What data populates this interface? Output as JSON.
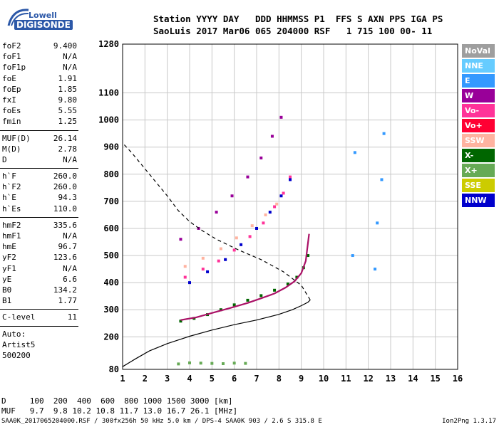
{
  "logo": {
    "top": "Lowell",
    "bottom": "DIGISONDE"
  },
  "header": {
    "line1": "Station YYYY DAY   DDD HHMMSS P1  FFS S AXN PPS IGA PS",
    "line2": "SaoLuis 2017 Mar06 065 204000 RSF   1 715 100 00- 11"
  },
  "params": {
    "g1": [
      {
        "name": "foF2",
        "value": "9.400"
      },
      {
        "name": "foF1",
        "value": "N/A"
      },
      {
        "name": "foF1p",
        "value": "N/A"
      },
      {
        "name": "foE",
        "value": "1.91"
      },
      {
        "name": "foEp",
        "value": "1.85"
      },
      {
        "name": "fxI",
        "value": "9.80"
      },
      {
        "name": "foEs",
        "value": "5.55"
      },
      {
        "name": "fmin",
        "value": "1.25"
      }
    ],
    "g2": [
      {
        "name": "MUF(D)",
        "value": "26.14"
      },
      {
        "name": "M(D)",
        "value": "2.78"
      },
      {
        "name": "D",
        "value": "N/A"
      }
    ],
    "g3": [
      {
        "name": "h`F",
        "value": "260.0"
      },
      {
        "name": "h`F2",
        "value": "260.0"
      },
      {
        "name": "h`E",
        "value": "94.3"
      },
      {
        "name": "h`Es",
        "value": "110.0"
      }
    ],
    "g4": [
      {
        "name": "hmF2",
        "value": "335.6"
      },
      {
        "name": "hmF1",
        "value": "N/A"
      },
      {
        "name": "hmE",
        "value": "96.7"
      },
      {
        "name": "yF2",
        "value": "123.6"
      },
      {
        "name": "yF1",
        "value": "N/A"
      },
      {
        "name": "yE",
        "value": "6.6"
      },
      {
        "name": "B0",
        "value": "134.2"
      },
      {
        "name": "B1",
        "value": "1.77"
      }
    ],
    "g5": [
      {
        "name": "C-level",
        "value": "11"
      }
    ],
    "auto": [
      "Auto:",
      "Artist5",
      "500200"
    ]
  },
  "legend": [
    {
      "label": "NoVal",
      "color": "#9e9e9e"
    },
    {
      "label": "NNE",
      "color": "#66ccff"
    },
    {
      "label": "E",
      "color": "#3399ff"
    },
    {
      "label": "W",
      "color": "#990099"
    },
    {
      "label": "Vo-",
      "color": "#ff3399"
    },
    {
      "label": "Vo+",
      "color": "#ff0033"
    },
    {
      "label": "SSW",
      "color": "#ffb3a0"
    },
    {
      "label": "X-",
      "color": "#006600"
    },
    {
      "label": "X+",
      "color": "#66aa55"
    },
    {
      "label": "SSE",
      "color": "#cccc00"
    },
    {
      "label": "NNW",
      "color": "#0000cc"
    }
  ],
  "bottom": {
    "d_line": "D     100  200  400  600  800 1000 1500 3000 [km]",
    "muf_line": "MUF   9.7  9.8 10.2 10.8 11.7 13.0 16.7 26.1 [MHz]"
  },
  "footer": {
    "left": "SAA0K_2017065204000.RSF / 300fx256h 50 kHz 5.0 km / DPS-4 SAA0K 903 / 2.6 S 315.8 E",
    "right": "Ion2Png 1.3.17"
  },
  "chart_data": {
    "type": "scatter",
    "title": "",
    "xlabel": "",
    "ylabel": "",
    "xlim": [
      1,
      16
    ],
    "ylim": [
      80,
      1280
    ],
    "x_ticks": [
      1,
      2,
      3,
      4,
      5,
      6,
      7,
      8,
      9,
      10,
      11,
      12,
      13,
      14,
      15,
      16
    ],
    "y_ticks": [
      80,
      200,
      300,
      400,
      500,
      600,
      700,
      800,
      900,
      1000,
      1100,
      1280
    ],
    "series": [
      {
        "name": "X-",
        "color": "#006600",
        "x": [
          3.6,
          4.2,
          4.8,
          5.4,
          6.0,
          6.6,
          7.2,
          7.8,
          8.4,
          8.8,
          9.1,
          9.3
        ],
        "y": [
          258,
          268,
          282,
          300,
          318,
          335,
          352,
          372,
          395,
          420,
          455,
          500
        ]
      },
      {
        "name": "Vo-",
        "color": "#ff3399",
        "x": [
          3.8,
          4.6,
          5.3,
          6.0,
          6.7,
          7.3,
          7.8,
          8.2,
          8.5
        ],
        "y": [
          420,
          450,
          480,
          520,
          570,
          620,
          680,
          730,
          790
        ]
      },
      {
        "name": "NNW",
        "color": "#0000cc",
        "x": [
          4.0,
          4.8,
          5.6,
          6.3,
          7.0,
          7.6,
          8.1,
          8.5
        ],
        "y": [
          400,
          440,
          485,
          540,
          600,
          660,
          720,
          780
        ]
      },
      {
        "name": "SSW",
        "color": "#ffb3a0",
        "x": [
          3.8,
          4.6,
          5.4,
          6.1,
          6.8,
          7.4,
          7.9
        ],
        "y": [
          460,
          490,
          525,
          565,
          610,
          650,
          690
        ]
      },
      {
        "name": "W",
        "color": "#990099",
        "x": [
          3.6,
          4.4,
          5.2,
          5.9,
          6.6,
          7.2,
          7.7,
          8.1
        ],
        "y": [
          560,
          600,
          660,
          720,
          790,
          860,
          940,
          1010
        ]
      },
      {
        "name": "X+",
        "color": "#66aa55",
        "x": [
          3.5,
          4.0,
          4.5,
          5.0,
          5.5,
          6.0,
          6.5
        ],
        "y": [
          100,
          104,
          103,
          102,
          101,
          103,
          102
        ]
      },
      {
        "name": "E",
        "color": "#3399ff",
        "x": [
          12.3,
          12.4,
          12.6,
          12.7,
          11.3,
          11.4
        ],
        "y": [
          450,
          620,
          780,
          950,
          500,
          880
        ]
      }
    ],
    "curves": [
      {
        "name": "profile",
        "style": "solid",
        "x": [
          1.0,
          1.6,
          2.2,
          3.0,
          4.0,
          5.0,
          6.0,
          7.0,
          8.0,
          8.6,
          9.0,
          9.3,
          9.4
        ],
        "y": [
          90,
          120,
          148,
          175,
          202,
          225,
          245,
          262,
          283,
          300,
          315,
          328,
          336
        ]
      },
      {
        "name": "profile-upper",
        "style": "dashed",
        "x": [
          9.4,
          9.0,
          8.2,
          7.2,
          6.2,
          5.2,
          4.6,
          4.0,
          3.5,
          3.0,
          2.6,
          2.2,
          1.8,
          1.4,
          1.0
        ],
        "y": [
          336,
          390,
          440,
          485,
          520,
          560,
          590,
          625,
          665,
          720,
          760,
          800,
          840,
          880,
          915
        ]
      },
      {
        "name": "trace",
        "style": "solid-magenta",
        "x": [
          3.6,
          4.3,
          5.0,
          5.8,
          6.6,
          7.2,
          7.8,
          8.3,
          8.7,
          9.0,
          9.2,
          9.35
        ],
        "y": [
          262,
          272,
          288,
          306,
          325,
          342,
          360,
          382,
          405,
          435,
          480,
          580
        ]
      }
    ]
  }
}
